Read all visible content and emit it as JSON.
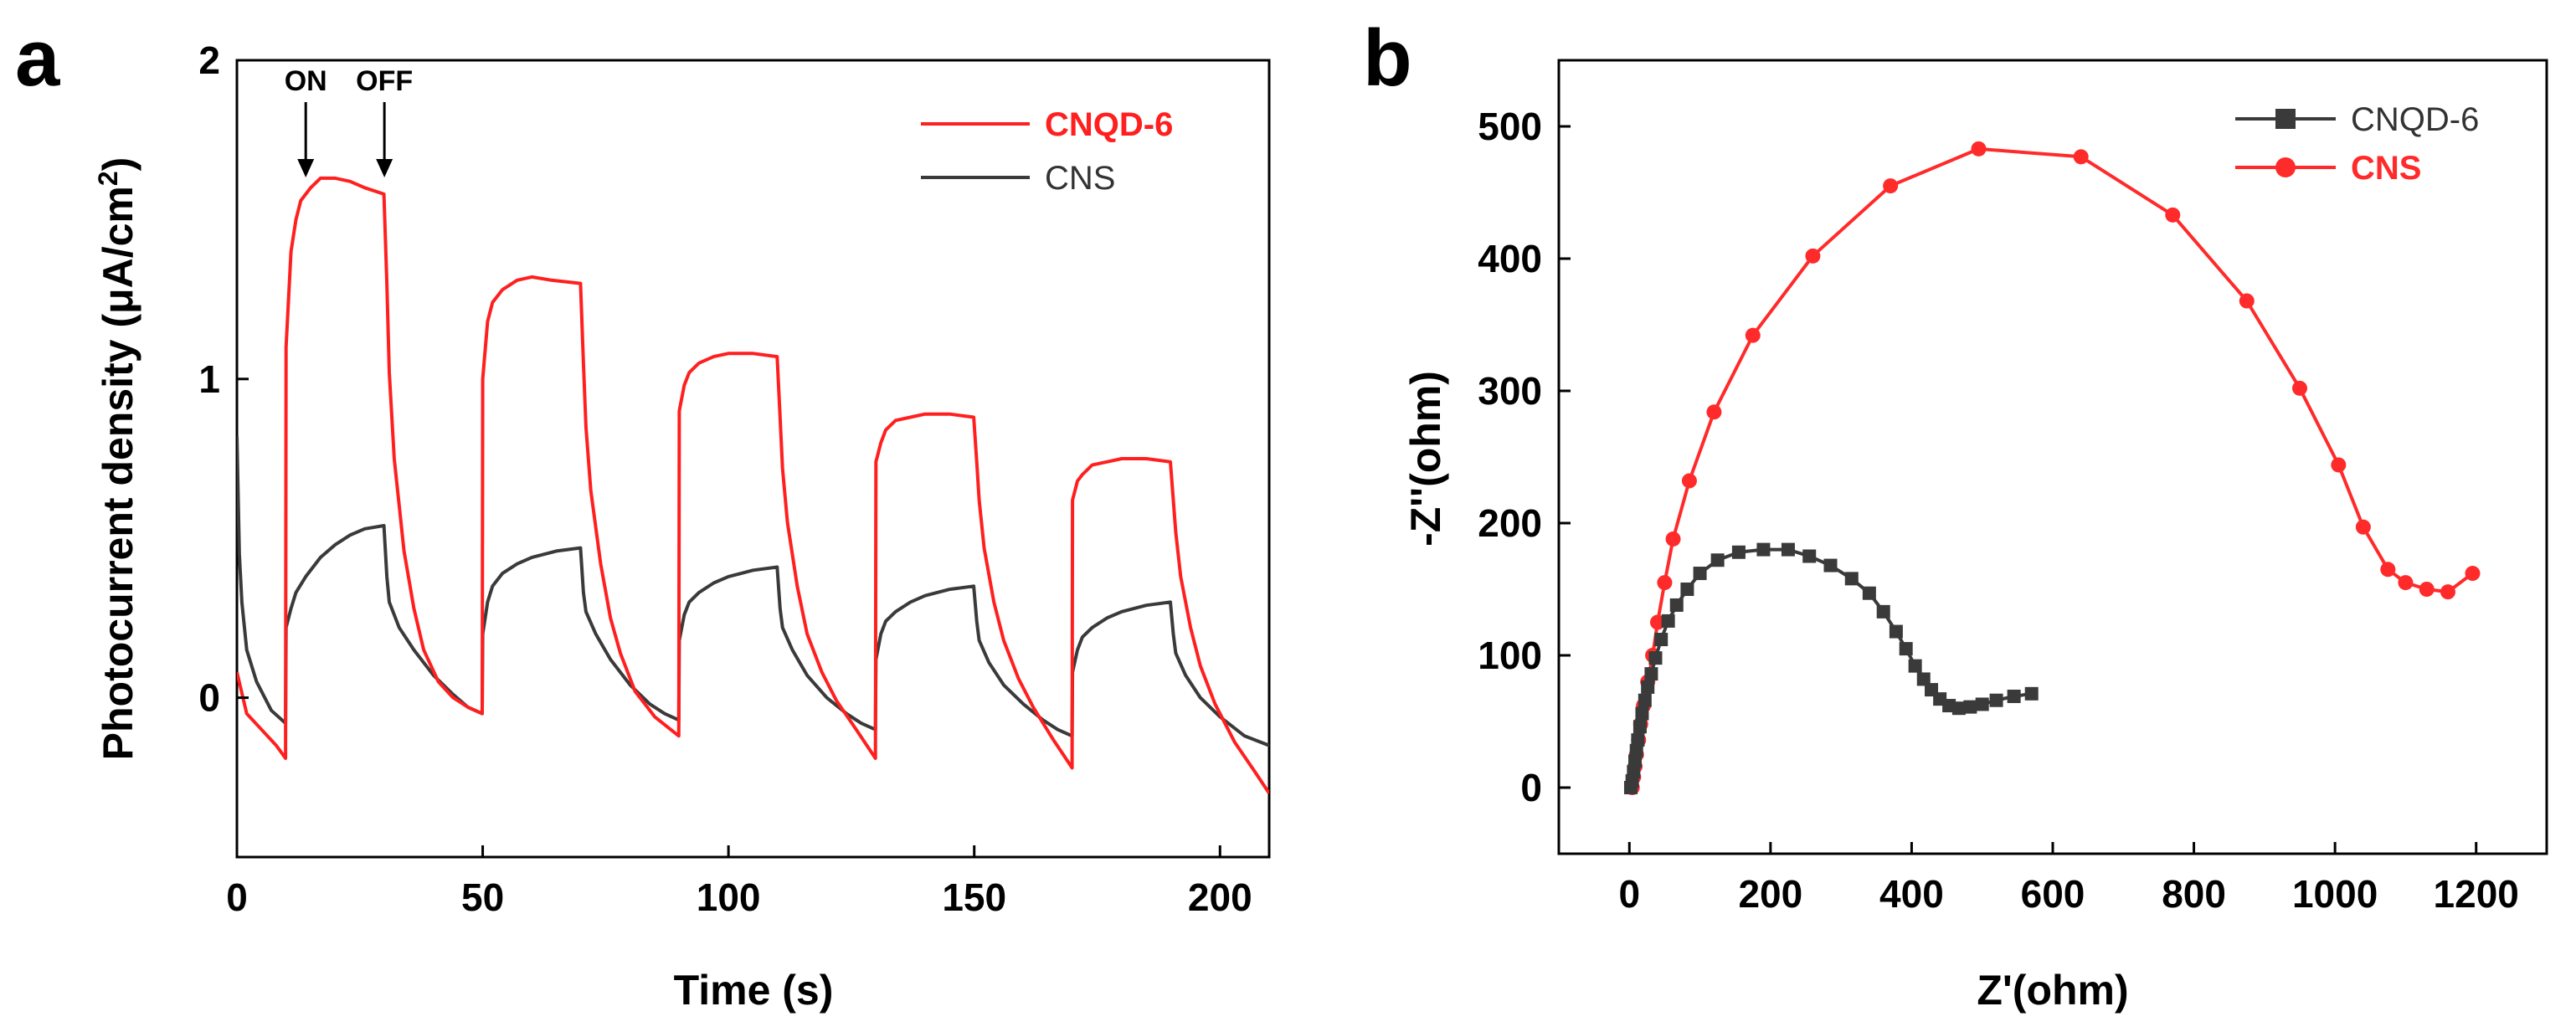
{
  "chart_data": [
    {
      "id": "a",
      "panel_letter": "a",
      "type": "line",
      "xlabel": "Time (s)",
      "ylabel_main": "Photocurrent density (μA/cm",
      "ylabel_sup": "2",
      "ylabel_close": ")",
      "xlim": [
        0,
        210
      ],
      "ylim": [
        -0.5,
        2
      ],
      "xticks": [
        0,
        50,
        100,
        150,
        200
      ],
      "yticks": [
        0,
        1,
        2
      ],
      "xtick_labels": [
        "0",
        "50",
        "100",
        "150",
        "200"
      ],
      "ytick_labels": [
        "0",
        "1",
        "2"
      ],
      "annotations": [
        {
          "text": "ON",
          "x": 14
        },
        {
          "text": "OFF",
          "x": 30
        }
      ],
      "legend": {
        "placement": "top-right"
      },
      "series": [
        {
          "name": "CNQD-6",
          "color": "#ff1f1f",
          "points": [
            [
              0,
              0.08
            ],
            [
              2,
              -0.05
            ],
            [
              5,
              -0.1
            ],
            [
              8,
              -0.15
            ],
            [
              9.9,
              -0.19
            ],
            [
              10,
              1.1
            ],
            [
              11,
              1.4
            ],
            [
              12,
              1.5
            ],
            [
              13,
              1.56
            ],
            [
              15,
              1.6
            ],
            [
              17,
              1.63
            ],
            [
              20,
              1.63
            ],
            [
              23,
              1.62
            ],
            [
              26,
              1.6
            ],
            [
              29.9,
              1.58
            ],
            [
              30.5,
              1.3
            ],
            [
              31,
              1.02
            ],
            [
              32,
              0.75
            ],
            [
              34,
              0.46
            ],
            [
              36,
              0.28
            ],
            [
              38,
              0.15
            ],
            [
              41,
              0.05
            ],
            [
              44,
              0.0
            ],
            [
              47,
              -0.03
            ],
            [
              49.9,
              -0.05
            ],
            [
              50,
              1.0
            ],
            [
              51,
              1.18
            ],
            [
              52,
              1.24
            ],
            [
              54,
              1.28
            ],
            [
              57,
              1.31
            ],
            [
              60,
              1.32
            ],
            [
              64,
              1.31
            ],
            [
              69.9,
              1.3
            ],
            [
              70.5,
              1.05
            ],
            [
              71,
              0.85
            ],
            [
              72,
              0.65
            ],
            [
              74,
              0.42
            ],
            [
              76,
              0.25
            ],
            [
              78,
              0.14
            ],
            [
              81,
              0.02
            ],
            [
              85,
              -0.06
            ],
            [
              89.9,
              -0.12
            ],
            [
              90,
              0.9
            ],
            [
              91,
              0.98
            ],
            [
              92,
              1.02
            ],
            [
              94,
              1.05
            ],
            [
              97,
              1.07
            ],
            [
              100,
              1.08
            ],
            [
              105,
              1.08
            ],
            [
              109.9,
              1.07
            ],
            [
              110.5,
              0.88
            ],
            [
              111,
              0.72
            ],
            [
              112,
              0.55
            ],
            [
              114,
              0.35
            ],
            [
              116,
              0.2
            ],
            [
              119,
              0.08
            ],
            [
              122,
              -0.01
            ],
            [
              126,
              -0.1
            ],
            [
              129.9,
              -0.19
            ],
            [
              130,
              0.74
            ],
            [
              131,
              0.8
            ],
            [
              132,
              0.84
            ],
            [
              134,
              0.87
            ],
            [
              137,
              0.88
            ],
            [
              140,
              0.89
            ],
            [
              145,
              0.89
            ],
            [
              149.9,
              0.88
            ],
            [
              150.5,
              0.74
            ],
            [
              151,
              0.62
            ],
            [
              152,
              0.47
            ],
            [
              154,
              0.3
            ],
            [
              156,
              0.18
            ],
            [
              159,
              0.06
            ],
            [
              162,
              -0.03
            ],
            [
              166,
              -0.13
            ],
            [
              169.9,
              -0.22
            ],
            [
              170,
              0.62
            ],
            [
              171,
              0.68
            ],
            [
              172,
              0.7
            ],
            [
              174,
              0.73
            ],
            [
              177,
              0.74
            ],
            [
              180,
              0.75
            ],
            [
              185,
              0.75
            ],
            [
              189.9,
              0.74
            ],
            [
              190.5,
              0.62
            ],
            [
              191,
              0.52
            ],
            [
              192,
              0.38
            ],
            [
              194,
              0.22
            ],
            [
              196,
              0.1
            ],
            [
              199,
              -0.02
            ],
            [
              203,
              -0.14
            ],
            [
              207,
              -0.23
            ],
            [
              210,
              -0.3
            ]
          ]
        },
        {
          "name": "CNS",
          "color": "#3a3a3a",
          "points": [
            [
              0,
              0.82
            ],
            [
              0.5,
              0.45
            ],
            [
              1,
              0.3
            ],
            [
              2,
              0.15
            ],
            [
              4,
              0.05
            ],
            [
              7,
              -0.04
            ],
            [
              9.9,
              -0.08
            ],
            [
              10,
              0.22
            ],
            [
              11,
              0.28
            ],
            [
              12,
              0.33
            ],
            [
              14,
              0.38
            ],
            [
              17,
              0.44
            ],
            [
              20,
              0.48
            ],
            [
              23,
              0.51
            ],
            [
              26,
              0.53
            ],
            [
              29.9,
              0.54
            ],
            [
              30.5,
              0.38
            ],
            [
              31,
              0.3
            ],
            [
              33,
              0.22
            ],
            [
              36,
              0.15
            ],
            [
              40,
              0.07
            ],
            [
              44,
              0.01
            ],
            [
              47,
              -0.03
            ],
            [
              49.9,
              -0.05
            ],
            [
              50,
              0.2
            ],
            [
              51,
              0.3
            ],
            [
              52,
              0.35
            ],
            [
              54,
              0.39
            ],
            [
              57,
              0.42
            ],
            [
              60,
              0.44
            ],
            [
              65,
              0.46
            ],
            [
              69.9,
              0.47
            ],
            [
              70.5,
              0.33
            ],
            [
              71,
              0.27
            ],
            [
              73,
              0.2
            ],
            [
              76,
              0.12
            ],
            [
              80,
              0.04
            ],
            [
              84,
              -0.02
            ],
            [
              87,
              -0.05
            ],
            [
              89.9,
              -0.07
            ],
            [
              90,
              0.18
            ],
            [
              91,
              0.26
            ],
            [
              92,
              0.3
            ],
            [
              94,
              0.33
            ],
            [
              97,
              0.36
            ],
            [
              100,
              0.38
            ],
            [
              105,
              0.4
            ],
            [
              109.9,
              0.41
            ],
            [
              110.5,
              0.28
            ],
            [
              111,
              0.22
            ],
            [
              113,
              0.15
            ],
            [
              116,
              0.07
            ],
            [
              120,
              0.0
            ],
            [
              124,
              -0.05
            ],
            [
              127,
              -0.08
            ],
            [
              129.9,
              -0.1
            ],
            [
              130,
              0.12
            ],
            [
              131,
              0.2
            ],
            [
              132,
              0.24
            ],
            [
              134,
              0.27
            ],
            [
              137,
              0.3
            ],
            [
              140,
              0.32
            ],
            [
              145,
              0.34
            ],
            [
              149.9,
              0.35
            ],
            [
              150.5,
              0.24
            ],
            [
              151,
              0.18
            ],
            [
              153,
              0.11
            ],
            [
              156,
              0.04
            ],
            [
              160,
              -0.02
            ],
            [
              164,
              -0.07
            ],
            [
              167,
              -0.1
            ],
            [
              169.9,
              -0.12
            ],
            [
              170,
              0.08
            ],
            [
              171,
              0.15
            ],
            [
              172,
              0.19
            ],
            [
              174,
              0.22
            ],
            [
              177,
              0.25
            ],
            [
              180,
              0.27
            ],
            [
              185,
              0.29
            ],
            [
              189.9,
              0.3
            ],
            [
              190.5,
              0.2
            ],
            [
              191,
              0.14
            ],
            [
              193,
              0.07
            ],
            [
              196,
              0.0
            ],
            [
              200,
              -0.06
            ],
            [
              205,
              -0.12
            ],
            [
              210,
              -0.15
            ]
          ]
        }
      ]
    },
    {
      "id": "b",
      "panel_letter": "b",
      "type": "scatter",
      "xlabel": "Z'(ohm)",
      "ylabel": "-Z''(ohm)",
      "xlim": [
        -100,
        1300
      ],
      "ylim": [
        -50,
        550
      ],
      "xticks": [
        0,
        200,
        400,
        600,
        800,
        1000,
        1200
      ],
      "yticks": [
        0,
        100,
        200,
        300,
        400,
        500
      ],
      "xtick_labels": [
        "0",
        "200",
        "400",
        "600",
        "800",
        "1000",
        "1200"
      ],
      "ytick_labels": [
        "0",
        "100",
        "200",
        "300",
        "400",
        "500"
      ],
      "legend": {
        "placement": "top-right"
      },
      "series": [
        {
          "name": "CNQD-6",
          "color": "#3a3a3a",
          "marker": "square",
          "points": [
            [
              2,
              0
            ],
            [
              4,
              5
            ],
            [
              6,
              12
            ],
            [
              8,
              20
            ],
            [
              10,
              28
            ],
            [
              12,
              36
            ],
            [
              15,
              46
            ],
            [
              18,
              56
            ],
            [
              22,
              66
            ],
            [
              26,
              76
            ],
            [
              31,
              86
            ],
            [
              37,
              98
            ],
            [
              45,
              112
            ],
            [
              55,
              126
            ],
            [
              67,
              138
            ],
            [
              82,
              150
            ],
            [
              100,
              162
            ],
            [
              125,
              172
            ],
            [
              155,
              178
            ],
            [
              190,
              180
            ],
            [
              225,
              180
            ],
            [
              255,
              175
            ],
            [
              285,
              168
            ],
            [
              315,
              158
            ],
            [
              340,
              147
            ],
            [
              360,
              133
            ],
            [
              378,
              118
            ],
            [
              392,
              105
            ],
            [
              405,
              92
            ],
            [
              417,
              82
            ],
            [
              428,
              74
            ],
            [
              440,
              67
            ],
            [
              453,
              62
            ],
            [
              467,
              60
            ],
            [
              483,
              61
            ],
            [
              500,
              63
            ],
            [
              520,
              66
            ],
            [
              545,
              69
            ],
            [
              570,
              71
            ]
          ]
        },
        {
          "name": "CNS",
          "color": "#ff2a2a",
          "marker": "circle",
          "points": [
            [
              4,
              0
            ],
            [
              6,
              8
            ],
            [
              8,
              16
            ],
            [
              10,
              25
            ],
            [
              13,
              36
            ],
            [
              16,
              48
            ],
            [
              20,
              62
            ],
            [
              26,
              80
            ],
            [
              33,
              100
            ],
            [
              40,
              125
            ],
            [
              50,
              155
            ],
            [
              62,
              188
            ],
            [
              85,
              232
            ],
            [
              120,
              284
            ],
            [
              175,
              342
            ],
            [
              260,
              402
            ],
            [
              370,
              455
            ],
            [
              495,
              483
            ],
            [
              640,
              477
            ],
            [
              770,
              433
            ],
            [
              875,
              368
            ],
            [
              950,
              302
            ],
            [
              1005,
              244
            ],
            [
              1040,
              197
            ],
            [
              1075,
              165
            ],
            [
              1100,
              155
            ],
            [
              1130,
              150
            ],
            [
              1160,
              148
            ],
            [
              1195,
              162
            ]
          ]
        }
      ]
    }
  ]
}
